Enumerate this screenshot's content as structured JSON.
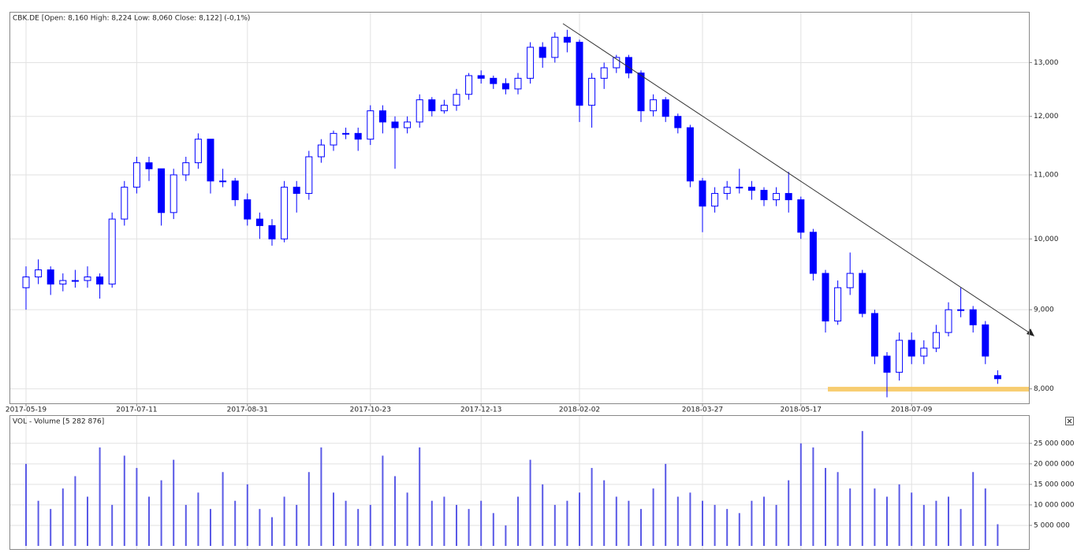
{
  "chart_data": [
    {
      "type": "candlestick",
      "title": "CBK.DE [Open: 8,160  High: 8,224  Low: 8,060  Close: 8,122]  (-0,1%)",
      "categories": [
        "2017-05-19",
        null,
        null,
        null,
        null,
        null,
        null,
        null,
        null,
        "2017-07-11",
        null,
        null,
        null,
        null,
        null,
        null,
        null,
        null,
        "2017-08-31",
        null,
        null,
        null,
        null,
        null,
        null,
        null,
        null,
        null,
        "2017-10-23",
        null,
        null,
        null,
        null,
        null,
        null,
        null,
        null,
        "2017-12-13",
        null,
        null,
        null,
        null,
        null,
        null,
        null,
        "2018-02-02",
        null,
        null,
        null,
        null,
        null,
        null,
        null,
        null,
        null,
        "2018-03-27",
        null,
        null,
        null,
        null,
        null,
        null,
        null,
        "2018-05-17",
        null,
        null,
        null,
        null,
        null,
        null,
        null,
        null,
        "2018-07-09",
        null,
        null,
        null,
        null,
        null,
        null,
        null
      ],
      "open": [
        9.3,
        9.45,
        9.55,
        9.35,
        9.4,
        9.4,
        9.45,
        9.35,
        10.3,
        10.8,
        11.2,
        11.1,
        10.4,
        11.0,
        11.2,
        11.6,
        10.9,
        10.9,
        10.6,
        10.3,
        10.2,
        10.0,
        10.8,
        10.7,
        11.3,
        11.5,
        11.7,
        11.7,
        11.6,
        12.1,
        11.9,
        11.8,
        11.9,
        12.3,
        12.1,
        12.2,
        12.4,
        12.75,
        12.7,
        12.6,
        12.5,
        12.7,
        13.3,
        13.1,
        13.5,
        13.4,
        12.2,
        12.7,
        12.9,
        13.1,
        12.8,
        12.1,
        12.3,
        12.0,
        11.8,
        10.9,
        10.5,
        10.7,
        10.8,
        10.8,
        10.75,
        10.6,
        10.7,
        10.6,
        10.1,
        9.5,
        8.85,
        9.3,
        9.5,
        8.95,
        8.4,
        8.2,
        8.6,
        8.4,
        8.5,
        8.7,
        9.0,
        9.0,
        8.8,
        8.16
      ],
      "high": [
        9.6,
        9.7,
        9.6,
        9.5,
        9.55,
        9.6,
        9.5,
        10.4,
        10.9,
        11.3,
        11.3,
        11.1,
        11.1,
        11.3,
        11.7,
        11.6,
        11.1,
        10.95,
        10.7,
        10.4,
        10.3,
        10.9,
        10.9,
        11.4,
        11.6,
        11.75,
        11.8,
        11.8,
        12.2,
        12.2,
        12.0,
        12.0,
        12.4,
        12.35,
        12.3,
        12.5,
        12.8,
        12.85,
        12.75,
        12.7,
        12.8,
        13.4,
        13.4,
        13.6,
        13.65,
        13.45,
        12.8,
        13.0,
        13.15,
        13.15,
        12.85,
        12.4,
        12.35,
        12.05,
        11.85,
        10.95,
        10.8,
        10.9,
        11.1,
        10.9,
        10.8,
        10.8,
        11.05,
        10.65,
        10.15,
        9.55,
        9.4,
        9.8,
        9.55,
        9.0,
        8.45,
        8.7,
        8.7,
        8.6,
        8.8,
        9.1,
        9.3,
        9.05,
        8.85,
        8.224
      ],
      "low": [
        9.0,
        9.35,
        9.2,
        9.25,
        9.3,
        9.3,
        9.15,
        9.3,
        10.2,
        10.7,
        10.9,
        10.2,
        10.3,
        10.9,
        11.1,
        10.7,
        10.8,
        10.5,
        10.2,
        10.0,
        9.9,
        9.95,
        10.4,
        10.6,
        11.2,
        11.4,
        11.6,
        11.4,
        11.5,
        11.7,
        11.1,
        11.7,
        11.8,
        12.0,
        12.05,
        12.1,
        12.3,
        12.6,
        12.5,
        12.4,
        12.4,
        12.6,
        12.9,
        13.0,
        13.2,
        11.9,
        11.8,
        12.5,
        12.8,
        12.7,
        11.9,
        12.0,
        11.9,
        11.7,
        10.8,
        10.1,
        10.4,
        10.6,
        10.7,
        10.6,
        10.5,
        10.5,
        10.4,
        10.0,
        9.4,
        8.7,
        8.8,
        9.2,
        8.9,
        8.3,
        7.9,
        8.1,
        8.3,
        8.3,
        8.45,
        8.65,
        8.9,
        8.7,
        8.3,
        8.06
      ],
      "close": [
        9.45,
        9.55,
        9.35,
        9.4,
        9.4,
        9.45,
        9.35,
        10.3,
        10.8,
        11.2,
        11.1,
        10.4,
        11.0,
        11.2,
        11.6,
        10.9,
        10.9,
        10.6,
        10.3,
        10.2,
        10.0,
        10.8,
        10.7,
        11.3,
        11.5,
        11.7,
        11.7,
        11.6,
        12.1,
        11.9,
        11.8,
        11.9,
        12.3,
        12.1,
        12.2,
        12.4,
        12.75,
        12.7,
        12.6,
        12.5,
        12.7,
        13.3,
        13.1,
        13.5,
        13.4,
        12.2,
        12.7,
        12.9,
        13.1,
        12.8,
        12.1,
        12.3,
        12.0,
        11.8,
        10.9,
        10.5,
        10.7,
        10.8,
        10.8,
        10.75,
        10.6,
        10.7,
        10.6,
        10.1,
        9.5,
        8.85,
        9.3,
        9.5,
        8.95,
        8.4,
        8.2,
        8.6,
        8.4,
        8.5,
        8.7,
        9.0,
        9.0,
        8.8,
        8.4,
        8.122
      ],
      "color": "#0000ff",
      "up_color": "#ffffff",
      "log_scale": true,
      "ylim": [
        7.83,
        14.02
      ],
      "yticks": [
        {
          "value": 8,
          "label": "8,000"
        },
        {
          "value": 9,
          "label": "9,000"
        },
        {
          "value": 10,
          "label": "10,000"
        },
        {
          "value": 11,
          "label": "11,000"
        },
        {
          "value": 12,
          "label": "12,000"
        },
        {
          "value": 13,
          "label": "13,000"
        }
      ],
      "grid": true
    },
    {
      "type": "bar",
      "title": "VOL - Volume [5 282 876]",
      "values": [
        20000000,
        11000000,
        9000000,
        14000000,
        17000000,
        12000000,
        24000000,
        10000000,
        22000000,
        19000000,
        12000000,
        16000000,
        21000000,
        10000000,
        13000000,
        9000000,
        18000000,
        11000000,
        15000000,
        9000000,
        7000000,
        12000000,
        10000000,
        18000000,
        24000000,
        13000000,
        11000000,
        9000000,
        10000000,
        22000000,
        17000000,
        13000000,
        24000000,
        11000000,
        12000000,
        10000000,
        9000000,
        11000000,
        8000000,
        5000000,
        12000000,
        21000000,
        15000000,
        10000000,
        11000000,
        13000000,
        19000000,
        16000000,
        12000000,
        11000000,
        9000000,
        14000000,
        20000000,
        12000000,
        13000000,
        11000000,
        10000000,
        9000000,
        8000000,
        11000000,
        12000000,
        10000000,
        16000000,
        25000000,
        24000000,
        19000000,
        18000000,
        14000000,
        28000000,
        14000000,
        12000000,
        15000000,
        13000000,
        10000000,
        11000000,
        12000000,
        9000000,
        18000000,
        14000000,
        5282876
      ],
      "color": "#5a5ae6",
      "ylim": [
        0,
        31300000
      ],
      "yticks": [
        {
          "value": 5000000,
          "label": "5 000 000"
        },
        {
          "value": 10000000,
          "label": "10 000 000"
        },
        {
          "value": 15000000,
          "label": "15 000 000"
        },
        {
          "value": 20000000,
          "label": "20 000 000"
        },
        {
          "value": 25000000,
          "label": "25 000 000"
        }
      ],
      "grid": true
    }
  ]
}
